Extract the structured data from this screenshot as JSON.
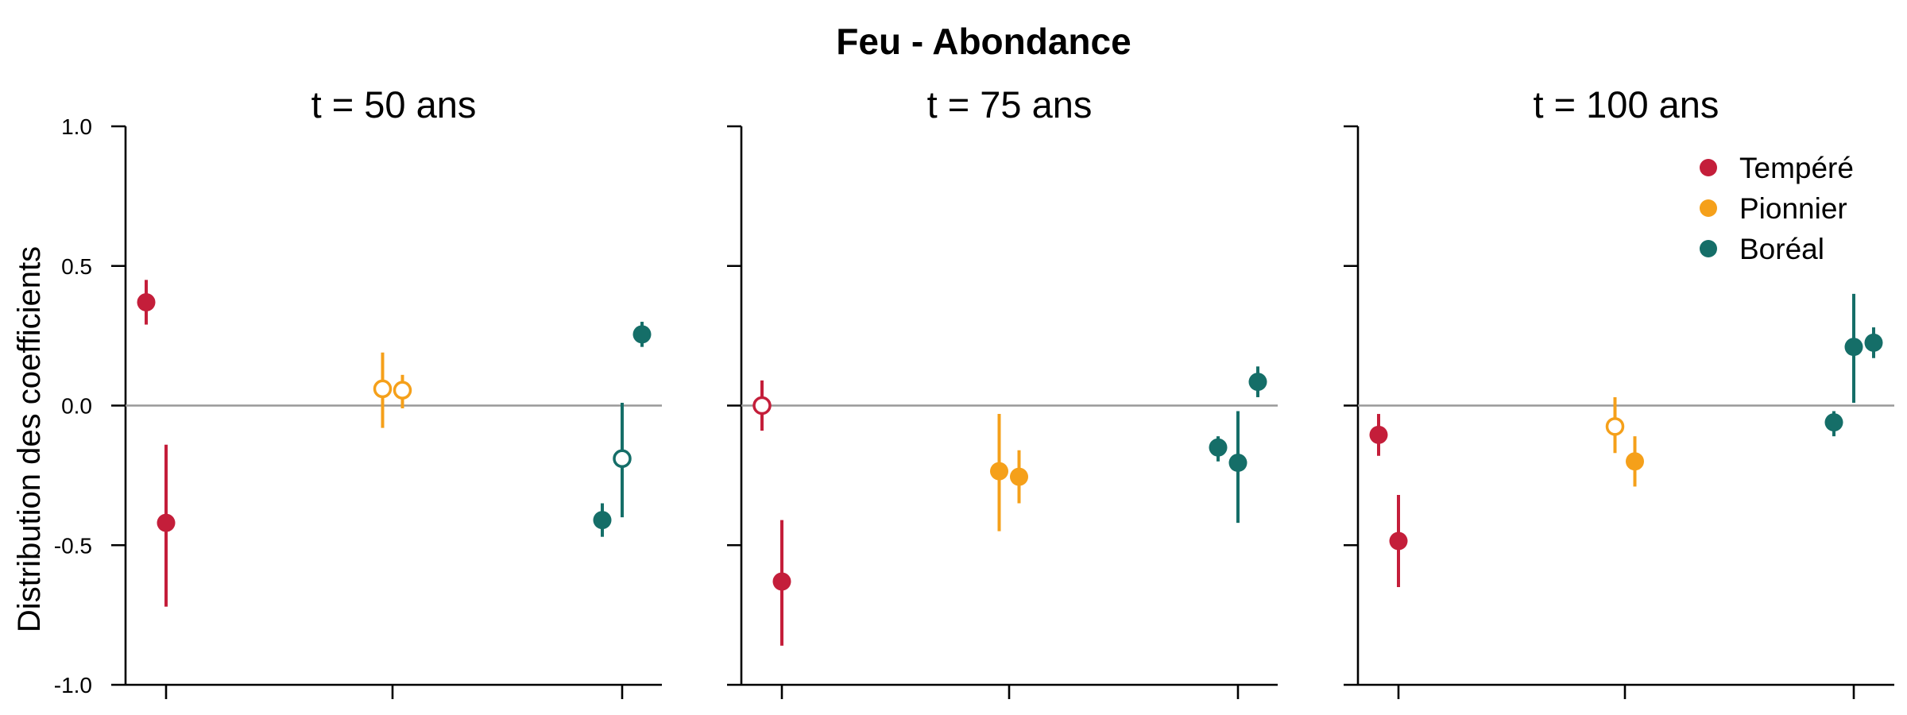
{
  "chart_data": {
    "type": "scatter",
    "title": "Feu - Abondance",
    "ylabel": "Distribution des coefficients",
    "xlabel": "",
    "ylim": [
      -1.0,
      1.0
    ],
    "yticks": [
      1.0,
      0.5,
      0.0,
      -0.5,
      -1.0
    ],
    "ytick_labels": [
      "1.0",
      "0.5",
      "0.0",
      "-0.5",
      "-1.0"
    ],
    "x_groups": 3,
    "grid": false,
    "reference_line": 0.0,
    "legend": {
      "placement": "top-right",
      "entries": [
        {
          "name": "Tempéré",
          "color": "#C41E3A"
        },
        {
          "name": "Pionnier",
          "color": "#F5A01A"
        },
        {
          "name": "Boréal",
          "color": "#156E68"
        }
      ]
    },
    "series_colors": {
      "Tempéré": "#C41E3A",
      "Pionnier": "#F5A01A",
      "Boréal": "#156E68"
    },
    "panels": [
      {
        "title": "t = 50 ans",
        "points": [
          {
            "series": "Tempéré",
            "group": 1,
            "offset": -1,
            "y": 0.37,
            "low": 0.29,
            "high": 0.45,
            "filled": true
          },
          {
            "series": "Tempéré",
            "group": 1,
            "offset": 0,
            "y": -0.42,
            "low": -0.72,
            "high": -0.14,
            "filled": true
          },
          {
            "series": "Pionnier",
            "group": 2,
            "offset": -0.5,
            "y": 0.06,
            "low": -0.08,
            "high": 0.19,
            "filled": false
          },
          {
            "series": "Pionnier",
            "group": 2,
            "offset": 0.5,
            "y": 0.055,
            "low": -0.01,
            "high": 0.11,
            "filled": false
          },
          {
            "series": "Boréal",
            "group": 3,
            "offset": -1,
            "y": -0.41,
            "low": -0.47,
            "high": -0.35,
            "filled": true
          },
          {
            "series": "Boréal",
            "group": 3,
            "offset": 0,
            "y": -0.19,
            "low": -0.4,
            "high": 0.01,
            "filled": false
          },
          {
            "series": "Boréal",
            "group": 3,
            "offset": 1,
            "y": 0.255,
            "low": 0.21,
            "high": 0.3,
            "filled": true
          }
        ]
      },
      {
        "title": "t = 75 ans",
        "points": [
          {
            "series": "Tempéré",
            "group": 1,
            "offset": -1,
            "y": 0.0,
            "low": -0.09,
            "high": 0.09,
            "filled": false
          },
          {
            "series": "Tempéré",
            "group": 1,
            "offset": 0,
            "y": -0.63,
            "low": -0.86,
            "high": -0.41,
            "filled": true
          },
          {
            "series": "Pionnier",
            "group": 2,
            "offset": -0.5,
            "y": -0.235,
            "low": -0.45,
            "high": -0.03,
            "filled": true
          },
          {
            "series": "Pionnier",
            "group": 2,
            "offset": 0.5,
            "y": -0.255,
            "low": -0.35,
            "high": -0.16,
            "filled": true
          },
          {
            "series": "Boréal",
            "group": 3,
            "offset": -1,
            "y": -0.15,
            "low": -0.2,
            "high": -0.11,
            "filled": true
          },
          {
            "series": "Boréal",
            "group": 3,
            "offset": 0,
            "y": -0.205,
            "low": -0.42,
            "high": -0.02,
            "filled": true
          },
          {
            "series": "Boréal",
            "group": 3,
            "offset": 1,
            "y": 0.085,
            "low": 0.03,
            "high": 0.14,
            "filled": true
          }
        ]
      },
      {
        "title": "t = 100 ans",
        "points": [
          {
            "series": "Tempéré",
            "group": 1,
            "offset": -1,
            "y": -0.105,
            "low": -0.18,
            "high": -0.03,
            "filled": true
          },
          {
            "series": "Tempéré",
            "group": 1,
            "offset": 0,
            "y": -0.485,
            "low": -0.65,
            "high": -0.32,
            "filled": true
          },
          {
            "series": "Pionnier",
            "group": 2,
            "offset": -0.5,
            "y": -0.075,
            "low": -0.17,
            "high": 0.03,
            "filled": false
          },
          {
            "series": "Pionnier",
            "group": 2,
            "offset": 0.5,
            "y": -0.2,
            "low": -0.29,
            "high": -0.11,
            "filled": true
          },
          {
            "series": "Boréal",
            "group": 3,
            "offset": -1,
            "y": -0.06,
            "low": -0.11,
            "high": -0.02,
            "filled": true
          },
          {
            "series": "Boréal",
            "group": 3,
            "offset": 0,
            "y": 0.21,
            "low": 0.01,
            "high": 0.4,
            "filled": true
          },
          {
            "series": "Boréal",
            "group": 3,
            "offset": 1,
            "y": 0.225,
            "low": 0.17,
            "high": 0.28,
            "filled": true
          }
        ]
      }
    ]
  }
}
